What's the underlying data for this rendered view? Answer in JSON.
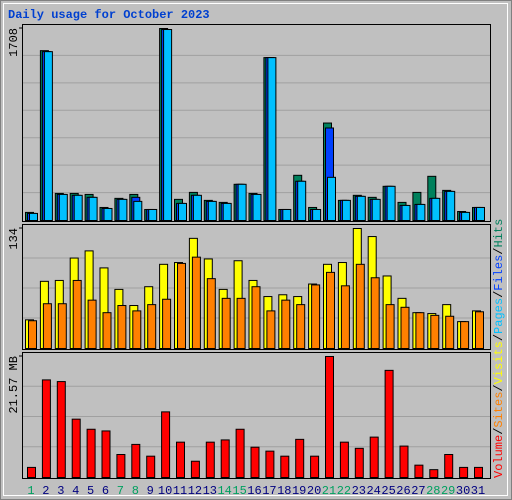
{
  "title": "Daily usage for October 2023",
  "legend_separator": "/",
  "chart_data": [
    {
      "type": "bar",
      "ylim": [
        0,
        1708
      ],
      "yticks": [
        1708
      ],
      "series": [
        {
          "name": "Hits",
          "color": "#00805c",
          "values": [
            72,
            1511,
            241,
            241,
            232,
            116,
            197,
            232,
            98,
            1708,
            188,
            250,
            179,
            161,
            322,
            241,
            1449,
            98,
            402,
            116,
            867,
            179,
            224,
            206,
            304,
            161,
            250,
            393,
            268,
            80,
            116
          ]
        },
        {
          "name": "Files",
          "color": "#0040ff",
          "values": [
            63,
            1502,
            232,
            224,
            206,
            107,
            188,
            206,
            98,
            1699,
            152,
            224,
            170,
            152,
            322,
            232,
            1449,
            98,
            349,
            98,
            823,
            179,
            215,
            188,
            304,
            134,
            143,
            197,
            259,
            72,
            116
          ]
        },
        {
          "name": "Pages",
          "color": "#00c0ff",
          "values": [
            63,
            1502,
            232,
            224,
            206,
            107,
            188,
            170,
            98,
            1699,
            152,
            224,
            170,
            152,
            322,
            232,
            1449,
            98,
            349,
            98,
            384,
            179,
            215,
            188,
            304,
            134,
            143,
            197,
            259,
            72,
            116
          ]
        }
      ]
    },
    {
      "type": "bar",
      "ylim": [
        0,
        134
      ],
      "yticks": [
        134
      ],
      "series": [
        {
          "name": "Visits",
          "color": "#ffff00",
          "values": [
            32,
            75,
            76,
            101,
            109,
            90,
            66,
            48,
            69,
            94,
            96,
            123,
            100,
            66,
            98,
            76,
            58,
            60,
            58,
            72,
            94,
            96,
            134,
            125,
            81,
            56,
            40,
            39,
            49,
            30,
            42
          ]
        },
        {
          "name": "Sites",
          "color": "#ff8000",
          "values": [
            31,
            50,
            50,
            76,
            54,
            40,
            48,
            42,
            49,
            55,
            95,
            102,
            78,
            56,
            56,
            69,
            42,
            54,
            49,
            71,
            85,
            70,
            94,
            79,
            49,
            46,
            40,
            37,
            36,
            30,
            41
          ]
        }
      ]
    },
    {
      "type": "bar",
      "ylim": [
        0,
        21.57
      ],
      "yticks": [
        {
          "value": 21.57,
          "label": "21.57 MB"
        }
      ],
      "categories": [
        "1",
        "2",
        "3",
        "4",
        "5",
        "6",
        "7",
        "8",
        "9",
        "10",
        "11",
        "12",
        "13",
        "14",
        "15",
        "16",
        "17",
        "18",
        "19",
        "20",
        "21",
        "22",
        "23",
        "24",
        "25",
        "26",
        "27",
        "28",
        "29",
        "30",
        "31"
      ],
      "category_colors": [
        "#00a060",
        "#000080",
        "#000080",
        "#000080",
        "#000080",
        "#000080",
        "#00a060",
        "#00a060",
        "#000080",
        "#000080",
        "#000080",
        "#000080",
        "#000080",
        "#00a060",
        "#00a060",
        "#000080",
        "#000080",
        "#000080",
        "#000080",
        "#000080",
        "#00a060",
        "#00a060",
        "#000080",
        "#000080",
        "#000080",
        "#000080",
        "#000080",
        "#00a060",
        "#00a060",
        "#000080",
        "#000080"
      ],
      "series": [
        {
          "name": "Volume",
          "color": "#ff0000",
          "values": [
            1.8,
            17.4,
            17.1,
            10.4,
            8.6,
            8.3,
            4.1,
            5.9,
            3.8,
            11.7,
            6.3,
            2.9,
            6.3,
            6.7,
            8.6,
            5.4,
            4.7,
            3.8,
            6.8,
            3.8,
            21.57,
            6.3,
            5.2,
            7.2,
            19.1,
            5.6,
            2.2,
            1.4,
            4.1,
            1.8,
            1.8
          ]
        }
      ]
    }
  ]
}
